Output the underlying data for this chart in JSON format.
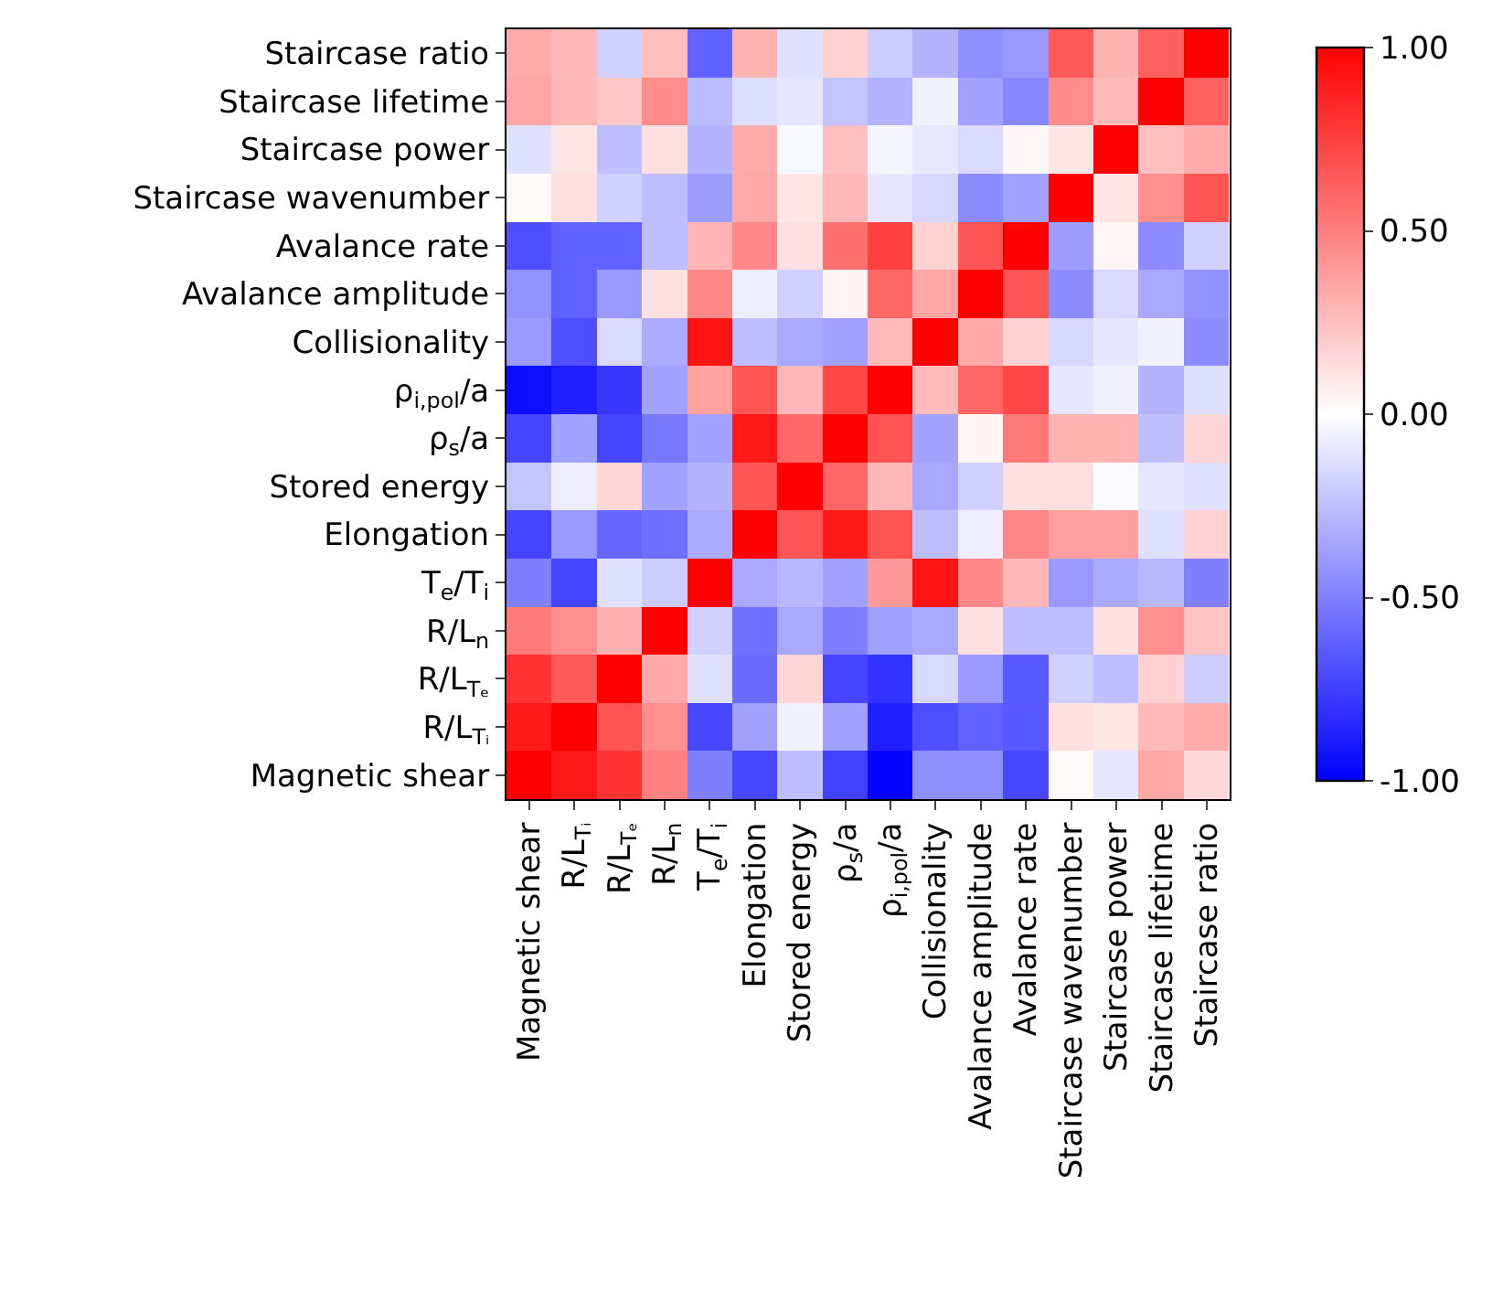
{
  "chart_data": {
    "type": "heatmap",
    "categories": [
      "Magnetic shear",
      "R/L$_{Tᵢ}$",
      "R/L$_{Tₑ}$",
      "R/L$_{n}$",
      "T$_{e}$/T$_{i}$",
      "Elongation",
      "Stored energy",
      "ρ$_{s}$/a",
      "ρ$_{i,pol}$/a",
      "Collisionality",
      "Avalance amplitude",
      "Avalance rate",
      "Staircase wavenumber",
      "Staircase power",
      "Staircase lifetime",
      "Staircase ratio"
    ],
    "y_categories": [
      "Staircase ratio",
      "Staircase lifetime",
      "Staircase power",
      "Staircase wavenumber",
      "Avalance rate",
      "Avalance amplitude",
      "Collisionality",
      "ρ$_{i,pol}$/a",
      "ρ$_{s}$/a",
      "Stored energy",
      "Elongation",
      "T$_{e}$/T$_{i}$",
      "R/L$_{n}$",
      "R/L$_{Tₑ}$",
      "R/L$_{Tᵢ}$",
      "Magnetic shear"
    ],
    "cells": [
      [
        0.33,
        0.28,
        -0.18,
        0.25,
        -0.62,
        0.3,
        -0.12,
        0.18,
        -0.2,
        -0.3,
        -0.44,
        -0.4,
        0.65,
        0.3,
        0.62,
        1.0
      ],
      [
        0.35,
        0.28,
        0.22,
        0.45,
        -0.27,
        -0.13,
        -0.1,
        -0.23,
        -0.3,
        -0.05,
        -0.37,
        -0.47,
        0.45,
        0.27,
        1.0,
        0.62
      ],
      [
        -0.12,
        0.1,
        -0.25,
        0.12,
        -0.3,
        0.33,
        -0.03,
        0.25,
        -0.04,
        -0.09,
        -0.15,
        0.03,
        0.1,
        1.0,
        0.25,
        0.33
      ],
      [
        0.02,
        0.12,
        -0.18,
        -0.25,
        -0.38,
        0.34,
        0.1,
        0.28,
        -0.1,
        -0.16,
        -0.45,
        -0.37,
        1.0,
        0.1,
        0.44,
        0.67
      ],
      [
        -0.69,
        -0.62,
        -0.62,
        -0.25,
        0.29,
        0.47,
        0.12,
        0.56,
        0.75,
        0.18,
        0.67,
        1.0,
        -0.38,
        0.03,
        -0.45,
        -0.18
      ],
      [
        -0.43,
        -0.62,
        -0.4,
        0.12,
        0.47,
        -0.07,
        -0.18,
        0.04,
        0.6,
        0.35,
        1.0,
        0.67,
        -0.45,
        -0.15,
        -0.34,
        -0.43
      ],
      [
        -0.4,
        -0.69,
        -0.15,
        -0.33,
        0.92,
        -0.25,
        -0.34,
        -0.37,
        0.27,
        1.0,
        0.34,
        0.18,
        -0.16,
        -0.1,
        -0.05,
        -0.45
      ],
      [
        -0.95,
        -0.88,
        -0.78,
        -0.37,
        0.37,
        0.67,
        0.28,
        0.72,
        1.0,
        0.27,
        0.6,
        0.72,
        -0.1,
        -0.05,
        -0.3,
        -0.13
      ],
      [
        -0.73,
        -0.37,
        -0.73,
        -0.53,
        -0.37,
        0.9,
        0.6,
        1.0,
        0.68,
        -0.37,
        0.04,
        0.53,
        0.3,
        0.3,
        -0.25,
        0.17
      ],
      [
        -0.23,
        -0.07,
        0.16,
        -0.37,
        -0.3,
        0.67,
        1.0,
        0.6,
        0.28,
        -0.34,
        -0.18,
        0.12,
        0.12,
        -0.02,
        -0.1,
        -0.12
      ],
      [
        -0.73,
        -0.4,
        -0.6,
        -0.56,
        -0.33,
        1.0,
        0.67,
        0.9,
        0.67,
        -0.25,
        -0.07,
        0.47,
        0.37,
        0.37,
        -0.12,
        0.18
      ],
      [
        -0.5,
        -0.73,
        -0.12,
        -0.2,
        1.0,
        -0.34,
        -0.28,
        -0.37,
        0.4,
        0.92,
        0.47,
        0.28,
        -0.4,
        -0.33,
        -0.28,
        -0.5
      ],
      [
        0.52,
        0.44,
        0.31,
        1.0,
        -0.18,
        -0.56,
        -0.34,
        -0.5,
        -0.37,
        -0.34,
        0.12,
        -0.25,
        -0.25,
        0.12,
        0.44,
        0.23
      ],
      [
        0.8,
        0.65,
        1.0,
        0.34,
        -0.12,
        -0.58,
        0.16,
        -0.73,
        -0.8,
        -0.15,
        -0.4,
        -0.65,
        -0.18,
        -0.25,
        0.18,
        -0.2
      ],
      [
        0.9,
        1.0,
        0.67,
        0.44,
        -0.72,
        -0.37,
        -0.05,
        -0.37,
        -0.88,
        -0.69,
        -0.62,
        -0.65,
        0.12,
        0.1,
        0.27,
        0.33
      ],
      [
        1.0,
        0.9,
        0.8,
        0.5,
        -0.5,
        -0.72,
        -0.25,
        -0.75,
        -0.98,
        -0.44,
        -0.44,
        -0.72,
        0.02,
        -0.1,
        0.34,
        0.15
      ]
    ],
    "clim": [
      -1.0,
      1.0
    ],
    "cticks": [
      {
        "value": 1.0,
        "label": "1.00"
      },
      {
        "value": 0.5,
        "label": "0.50"
      },
      {
        "value": 0.0,
        "label": "0.00"
      },
      {
        "value": -0.5,
        "label": "-0.50"
      },
      {
        "value": -1.0,
        "label": "-1.00"
      }
    ]
  }
}
